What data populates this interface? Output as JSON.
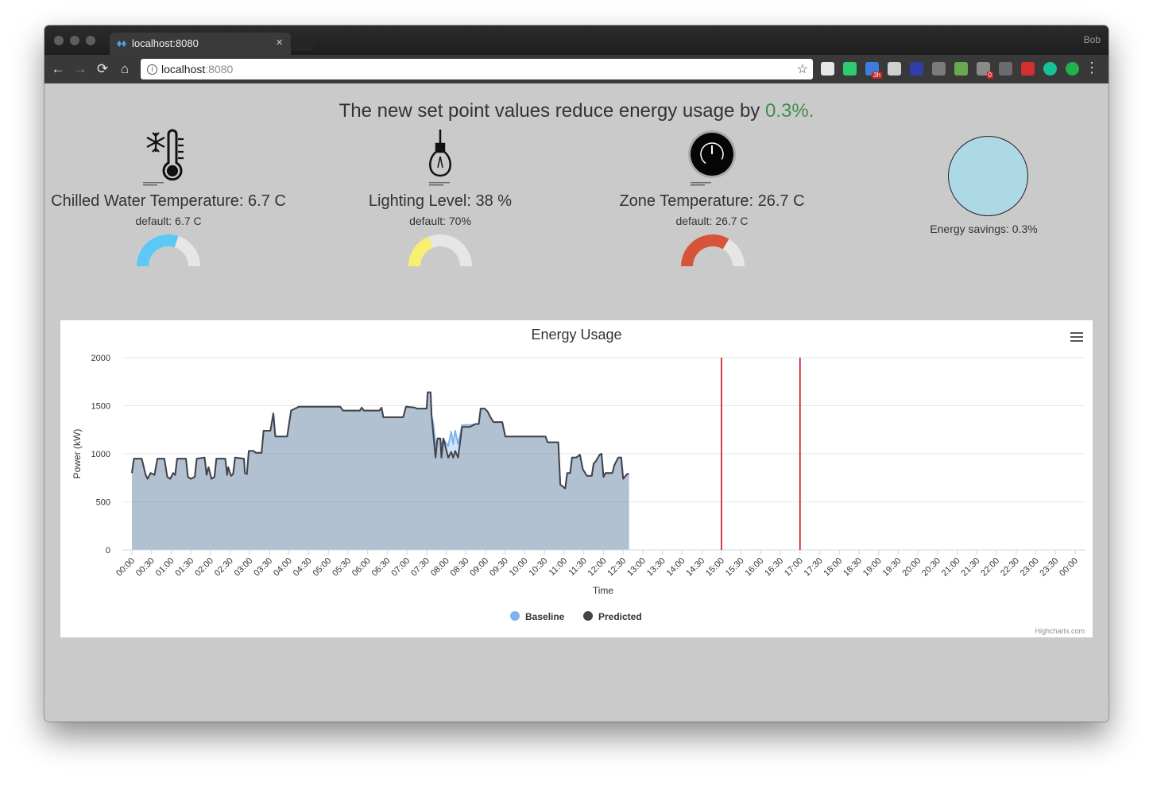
{
  "browser": {
    "tab_title": "localhost:8080",
    "tab_close": "×",
    "profile": "Bob",
    "url_host": "localhost",
    "url_port": ":8080",
    "info_glyph": "i",
    "star_glyph": "☆",
    "menu_glyph": "⋮",
    "back_glyph": "←",
    "forward_glyph": "→",
    "reload_glyph": "⟳",
    "home_glyph": "⌂",
    "extensions": [
      {
        "name": "pocket-extension-icon",
        "color": "#e7e7e7"
      },
      {
        "name": "sheets-extension-icon",
        "color": "#2ecc71"
      },
      {
        "name": "calendar-extension-icon",
        "color": "#3d7de0",
        "badge": "3h"
      },
      {
        "name": "calculator-extension-icon",
        "color": "#d0d0d0"
      },
      {
        "name": "k-extension-icon",
        "color": "#2f3ea8"
      },
      {
        "name": "cast-extension-icon",
        "color": "#7a7a7a"
      },
      {
        "name": "puzzle-extension-icon",
        "color": "#6aa84f"
      },
      {
        "name": "lock-extension-icon",
        "color": "#8a8a8a",
        "badge": "0"
      },
      {
        "name": "recycle-extension-icon",
        "color": "#6b6b6b"
      },
      {
        "name": "lastpass-extension-icon",
        "color": "#d32f2f"
      },
      {
        "name": "grammarly-extension-icon",
        "color": "#15c39a"
      },
      {
        "name": "evernote-extension-icon",
        "color": "#22b14c"
      }
    ]
  },
  "headline": {
    "prefix": "The new set point values reduce energy usage by ",
    "value": "0.3%."
  },
  "metrics": [
    {
      "label": "Chilled Water Temperature: 6.7 C",
      "default": "default: 6.7 C",
      "fraction": 0.6,
      "color": "#5bc8f5"
    },
    {
      "label": "Lighting Level: 38 %",
      "default": "default: 70%",
      "fraction": 0.38,
      "color": "#f7f06e"
    },
    {
      "label": "Zone Temperature: 26.7 C",
      "default": "default: 26.7 C",
      "fraction": 0.67,
      "color": "#d6543a"
    }
  ],
  "energy": {
    "label": "Energy savings: 0.3%",
    "circle_color": "#add8e6"
  },
  "chart_data": {
    "type": "area",
    "title": "Energy Usage",
    "xlabel": "Time",
    "ylabel": "Power (kW)",
    "ylim": [
      0,
      2000
    ],
    "yticks": [
      0,
      500,
      1000,
      1500,
      2000
    ],
    "xticks": [
      "00:00",
      "00:30",
      "01:00",
      "01:30",
      "02:00",
      "02:30",
      "03:00",
      "03:30",
      "04:00",
      "04:30",
      "05:00",
      "05:30",
      "06:00",
      "06:30",
      "07:00",
      "07:30",
      "08:00",
      "08:30",
      "09:00",
      "09:30",
      "10:00",
      "10:30",
      "11:00",
      "11:30",
      "12:00",
      "12:30",
      "13:00",
      "13:30",
      "14:00",
      "14:30",
      "15:00",
      "15:30",
      "16:00",
      "16:30",
      "17:00",
      "17:30",
      "18:00",
      "18:30",
      "19:00",
      "19:30",
      "20:00",
      "20:30",
      "21:00",
      "21:30",
      "22:00",
      "22:30",
      "23:00",
      "23:30",
      "00:00"
    ],
    "vertical_lines": [
      15.0,
      17.0
    ],
    "legend": [
      "Baseline",
      "Predicted"
    ],
    "legend_colors": [
      "#7cb5ec",
      "#434348"
    ],
    "credit": "Highcharts.com",
    "series": [
      {
        "name": "Baseline",
        "values": [
          [
            0,
            800
          ],
          [
            0.1,
            950
          ],
          [
            0.5,
            950
          ],
          [
            0.7,
            780
          ],
          [
            0.8,
            740
          ],
          [
            0.95,
            800
          ],
          [
            1.15,
            780
          ],
          [
            1.3,
            950
          ],
          [
            1.65,
            950
          ],
          [
            1.8,
            760
          ],
          [
            1.95,
            740
          ],
          [
            2.1,
            800
          ],
          [
            2.2,
            780
          ],
          [
            2.3,
            950
          ],
          [
            2.75,
            950
          ],
          [
            2.85,
            760
          ],
          [
            3.0,
            740
          ],
          [
            3.2,
            760
          ],
          [
            3.3,
            950
          ],
          [
            3.7,
            960
          ],
          [
            3.8,
            780
          ],
          [
            3.9,
            860
          ],
          [
            4.05,
            740
          ],
          [
            4.2,
            760
          ],
          [
            4.3,
            950
          ],
          [
            4.75,
            950
          ],
          [
            4.85,
            780
          ],
          [
            4.9,
            860
          ],
          [
            5.05,
            770
          ],
          [
            5.15,
            790
          ],
          [
            5.25,
            960
          ],
          [
            5.7,
            950
          ],
          [
            5.75,
            800
          ],
          [
            5.85,
            790
          ],
          [
            5.95,
            1030
          ],
          [
            6.2,
            1030
          ],
          [
            6.3,
            1010
          ],
          [
            6.6,
            1010
          ],
          [
            6.7,
            1240
          ],
          [
            7.05,
            1240
          ],
          [
            7.2,
            1420
          ],
          [
            7.3,
            1180
          ],
          [
            7.9,
            1180
          ],
          [
            8.1,
            1450
          ],
          [
            8.3,
            1470
          ],
          [
            8.5,
            1490
          ],
          [
            10.6,
            1490
          ],
          [
            10.75,
            1450
          ],
          [
            11.6,
            1450
          ],
          [
            11.7,
            1480
          ],
          [
            11.8,
            1450
          ],
          [
            12.6,
            1450
          ],
          [
            12.7,
            1480
          ],
          [
            12.8,
            1380
          ],
          [
            13.8,
            1380
          ],
          [
            13.95,
            1490
          ],
          [
            14.4,
            1480
          ],
          [
            14.5,
            1470
          ],
          [
            15.0,
            1470
          ],
          [
            15.05,
            1640
          ],
          [
            15.2,
            1640
          ],
          [
            15.25,
            1400
          ],
          [
            15.35,
            1300
          ],
          [
            15.45,
            1080
          ],
          [
            15.55,
            1150
          ],
          [
            15.7,
            1150
          ],
          [
            15.75,
            1080
          ],
          [
            15.85,
            1150
          ],
          [
            16.1,
            1080
          ],
          [
            16.25,
            1230
          ],
          [
            16.35,
            1100
          ],
          [
            16.45,
            1240
          ],
          [
            16.6,
            1100
          ],
          [
            16.8,
            1300
          ],
          [
            17.2,
            1300
          ],
          [
            17.5,
            1310
          ],
          [
            17.65,
            1310
          ],
          [
            17.75,
            1470
          ],
          [
            17.95,
            1470
          ],
          [
            18.1,
            1440
          ],
          [
            18.25,
            1380
          ],
          [
            18.4,
            1330
          ],
          [
            18.85,
            1330
          ],
          [
            19.0,
            1180
          ],
          [
            21.05,
            1180
          ],
          [
            21.15,
            1120
          ],
          [
            21.7,
            1120
          ],
          [
            21.8,
            680
          ],
          [
            22.05,
            640
          ],
          [
            22.15,
            800
          ],
          [
            22.3,
            800
          ],
          [
            22.4,
            960
          ],
          [
            22.6,
            960
          ],
          [
            22.8,
            990
          ],
          [
            22.95,
            840
          ],
          [
            23.15,
            770
          ],
          [
            23.4,
            770
          ],
          [
            23.5,
            900
          ],
          [
            23.6,
            920
          ],
          [
            23.8,
            990
          ],
          [
            23.9,
            1000
          ],
          [
            24.0,
            760
          ],
          [
            24.1,
            800
          ],
          [
            24.45,
            800
          ],
          [
            24.55,
            880
          ],
          [
            24.75,
            960
          ],
          [
            24.9,
            960
          ],
          [
            25.0,
            740
          ],
          [
            25.2,
            790
          ],
          [
            25.3,
            790
          ]
        ]
      },
      {
        "name": "Predicted",
        "values": [
          [
            0,
            800
          ],
          [
            0.1,
            950
          ],
          [
            0.5,
            950
          ],
          [
            0.7,
            780
          ],
          [
            0.8,
            740
          ],
          [
            0.95,
            800
          ],
          [
            1.15,
            780
          ],
          [
            1.3,
            950
          ],
          [
            1.65,
            950
          ],
          [
            1.8,
            760
          ],
          [
            1.95,
            740
          ],
          [
            2.1,
            800
          ],
          [
            2.2,
            780
          ],
          [
            2.3,
            950
          ],
          [
            2.75,
            950
          ],
          [
            2.85,
            760
          ],
          [
            3.0,
            740
          ],
          [
            3.2,
            760
          ],
          [
            3.3,
            950
          ],
          [
            3.7,
            960
          ],
          [
            3.8,
            780
          ],
          [
            3.9,
            860
          ],
          [
            4.05,
            740
          ],
          [
            4.2,
            760
          ],
          [
            4.3,
            950
          ],
          [
            4.75,
            950
          ],
          [
            4.85,
            780
          ],
          [
            4.9,
            860
          ],
          [
            5.05,
            770
          ],
          [
            5.15,
            790
          ],
          [
            5.25,
            960
          ],
          [
            5.7,
            950
          ],
          [
            5.75,
            800
          ],
          [
            5.85,
            790
          ],
          [
            5.95,
            1030
          ],
          [
            6.2,
            1030
          ],
          [
            6.3,
            1010
          ],
          [
            6.6,
            1010
          ],
          [
            6.7,
            1240
          ],
          [
            7.05,
            1240
          ],
          [
            7.2,
            1420
          ],
          [
            7.3,
            1180
          ],
          [
            7.9,
            1180
          ],
          [
            8.1,
            1450
          ],
          [
            8.3,
            1470
          ],
          [
            8.5,
            1490
          ],
          [
            10.6,
            1490
          ],
          [
            10.75,
            1450
          ],
          [
            11.6,
            1450
          ],
          [
            11.7,
            1480
          ],
          [
            11.8,
            1450
          ],
          [
            12.6,
            1450
          ],
          [
            12.7,
            1480
          ],
          [
            12.8,
            1380
          ],
          [
            13.8,
            1380
          ],
          [
            13.95,
            1490
          ],
          [
            14.4,
            1480
          ],
          [
            14.5,
            1470
          ],
          [
            15.0,
            1470
          ],
          [
            15.05,
            1640
          ],
          [
            15.2,
            1640
          ],
          [
            15.25,
            1400
          ],
          [
            15.35,
            1180
          ],
          [
            15.45,
            960
          ],
          [
            15.55,
            1160
          ],
          [
            15.7,
            1160
          ],
          [
            15.75,
            960
          ],
          [
            15.85,
            1160
          ],
          [
            16.1,
            960
          ],
          [
            16.25,
            1020
          ],
          [
            16.35,
            960
          ],
          [
            16.45,
            1030
          ],
          [
            16.6,
            960
          ],
          [
            16.8,
            1280
          ],
          [
            17.2,
            1280
          ],
          [
            17.5,
            1310
          ],
          [
            17.65,
            1310
          ],
          [
            17.75,
            1470
          ],
          [
            17.95,
            1470
          ],
          [
            18.1,
            1440
          ],
          [
            18.25,
            1380
          ],
          [
            18.4,
            1330
          ],
          [
            18.85,
            1330
          ],
          [
            19.0,
            1180
          ],
          [
            21.05,
            1180
          ],
          [
            21.15,
            1120
          ],
          [
            21.7,
            1120
          ],
          [
            21.8,
            680
          ],
          [
            22.05,
            640
          ],
          [
            22.15,
            800
          ],
          [
            22.3,
            800
          ],
          [
            22.4,
            960
          ],
          [
            22.6,
            960
          ],
          [
            22.8,
            990
          ],
          [
            22.95,
            840
          ],
          [
            23.15,
            770
          ],
          [
            23.4,
            770
          ],
          [
            23.5,
            900
          ],
          [
            23.6,
            920
          ],
          [
            23.8,
            990
          ],
          [
            23.9,
            1000
          ],
          [
            24.0,
            760
          ],
          [
            24.1,
            800
          ],
          [
            24.45,
            800
          ],
          [
            24.55,
            880
          ],
          [
            24.75,
            960
          ],
          [
            24.9,
            960
          ],
          [
            25.0,
            740
          ],
          [
            25.2,
            790
          ],
          [
            25.3,
            790
          ]
        ]
      }
    ]
  }
}
